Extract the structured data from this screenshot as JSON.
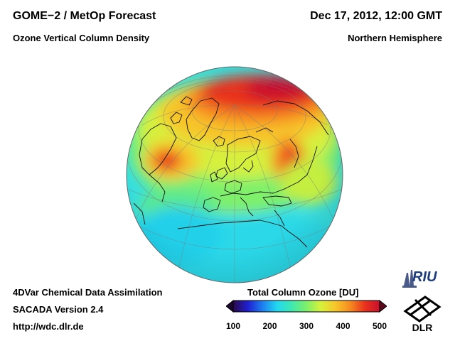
{
  "header": {
    "title_line1": "GOME−2 / MetOp Forecast",
    "title_line2": "Ozone Vertical Column Density",
    "datetime": "Dec 17, 2012, 12:00 GMT",
    "region": "Northern Hemisphere"
  },
  "footer": {
    "method": "4DVar Chemical Data Assimilation",
    "version": "SACADA Version 2.4",
    "url": "http://wdc.dlr.de"
  },
  "colorbar": {
    "title": "Total Column Ozone [DU]",
    "min": 100,
    "max": 500,
    "ticks": [
      {
        "value": 100,
        "label": "100"
      },
      {
        "value": 200,
        "label": "200"
      },
      {
        "value": 300,
        "label": "300"
      },
      {
        "value": 400,
        "label": "400"
      },
      {
        "value": 500,
        "label": "500"
      }
    ],
    "colors": [
      "#2a0a4a",
      "#1f1fd0",
      "#1e7ff0",
      "#22d8f0",
      "#3fe8b0",
      "#7ef06a",
      "#d8f03a",
      "#f7c52a",
      "#f58a20",
      "#e8321c",
      "#c8102e"
    ]
  },
  "logos": {
    "riu": "RIU",
    "dlr": "DLR"
  },
  "map": {
    "projection": "orthographic",
    "ocean_field_color": "#38e2d2",
    "high_ozone_color": "#e8322a"
  }
}
